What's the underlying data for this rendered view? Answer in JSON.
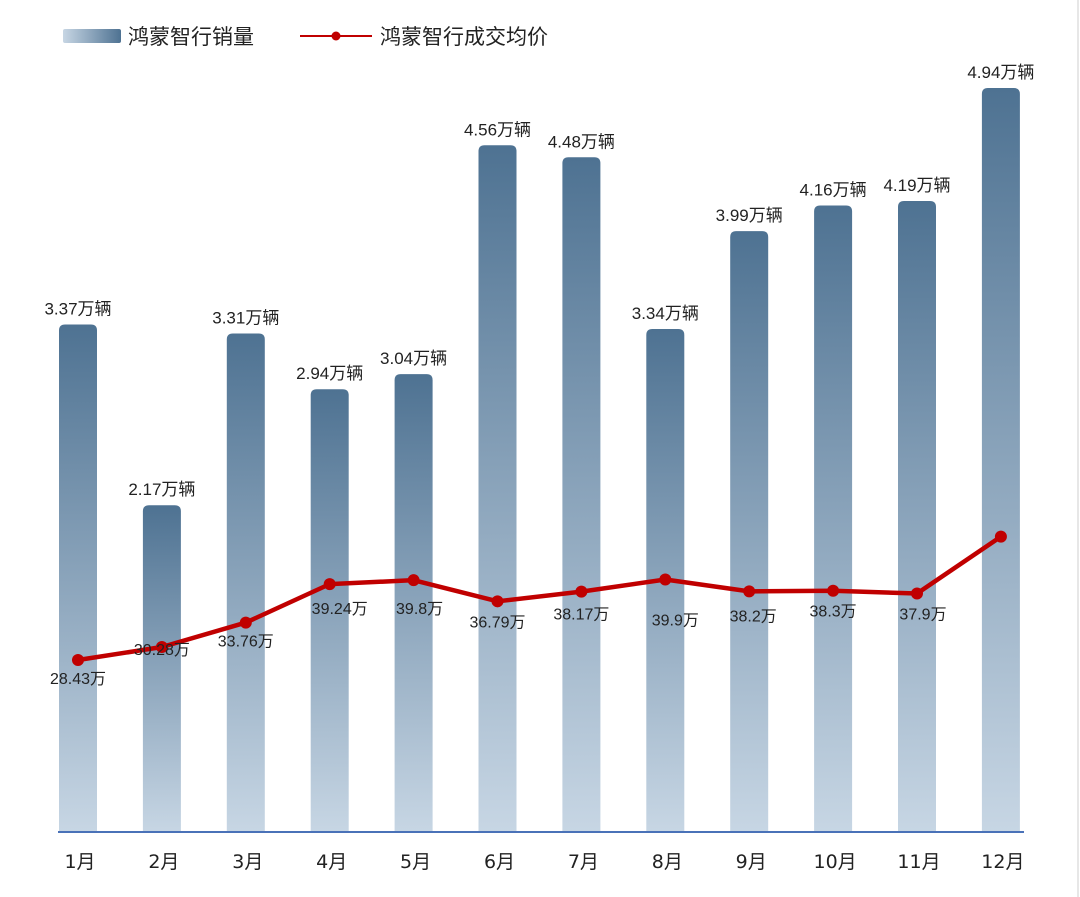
{
  "chart_data": {
    "type": "bar",
    "categories": [
      "1月",
      "2月",
      "3月",
      "4月",
      "5月",
      "6月",
      "7月",
      "8月",
      "9月",
      "10月",
      "11月",
      "12月"
    ],
    "series": [
      {
        "name": "鸿蒙智行销量",
        "kind": "bar",
        "unit": "万辆",
        "values": [
          3.37,
          2.17,
          3.31,
          2.94,
          3.04,
          4.56,
          4.48,
          3.34,
          3.99,
          4.16,
          4.19,
          4.94
        ],
        "labels": [
          "3.37万辆",
          "2.17万辆",
          "3.31万辆",
          "2.94万辆",
          "3.04万辆",
          "4.56万辆",
          "4.48万辆",
          "3.34万辆",
          "3.99万辆",
          "4.16万辆",
          "4.19万辆",
          "4.94万辆"
        ],
        "color_top": "#4e7292",
        "color_bottom": "#c7d6e4"
      },
      {
        "name": "鸿蒙智行成交均价",
        "kind": "line",
        "unit": "万",
        "values": [
          28.43,
          30.28,
          33.76,
          39.24,
          39.8,
          36.79,
          38.17,
          39.9,
          38.2,
          38.3,
          37.9,
          46.0
        ],
        "labels": [
          "28.43万",
          "30.28万",
          "33.76万",
          "39.24万",
          "39.8万",
          "36.79万",
          "38.17万",
          "39.9万",
          "38.2万",
          "38.3万",
          "37.9万",
          ""
        ],
        "color": "#c00000"
      }
    ],
    "legend": "top-left",
    "grid": false
  }
}
